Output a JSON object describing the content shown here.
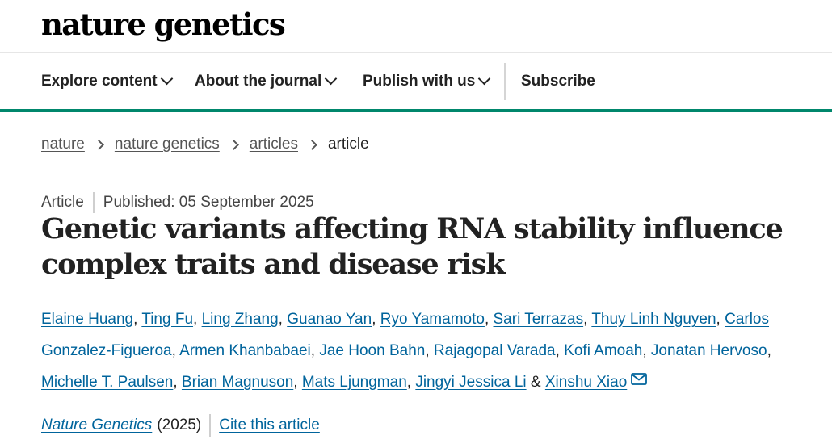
{
  "header": {
    "logo_text": "nature genetics",
    "accent_color": "#00876c"
  },
  "nav": {
    "items": [
      {
        "label": "Explore content",
        "has_dropdown": true
      },
      {
        "label": "About the journal",
        "has_dropdown": true
      },
      {
        "label": "Publish with us",
        "has_dropdown": true
      }
    ],
    "subscribe_label": "Subscribe"
  },
  "breadcrumb": {
    "items": [
      "nature",
      "nature genetics",
      "articles"
    ],
    "current": "article"
  },
  "article": {
    "type": "Article",
    "published": "Published: 05 September 2025",
    "title": "Genetic variants affecting RNA stability influence complex traits and disease risk",
    "authors": [
      "Elaine Huang",
      "Ting Fu",
      "Ling Zhang",
      "Guanao Yan",
      "Ryo Yamamoto",
      "Sari Terrazas",
      "Thuy Linh Nguyen",
      "Carlos Gonzalez-Figueroa",
      "Armen Khanbabaei",
      "Jae Hoon Bahn",
      "Rajagopal Varada",
      "Kofi Amoah",
      "Jonatan Hervoso",
      "Michelle T. Paulsen",
      "Brian Magnuson",
      "Mats Ljungman",
      "Jingyi Jessica Li",
      "Xinshu Xiao"
    ],
    "last_author_joiner": "&",
    "corresponding_icon": "envelope-icon",
    "journal_name": "Nature Genetics",
    "year": "(2025)",
    "cite_label": "Cite this article",
    "link_color": "#00649c"
  }
}
